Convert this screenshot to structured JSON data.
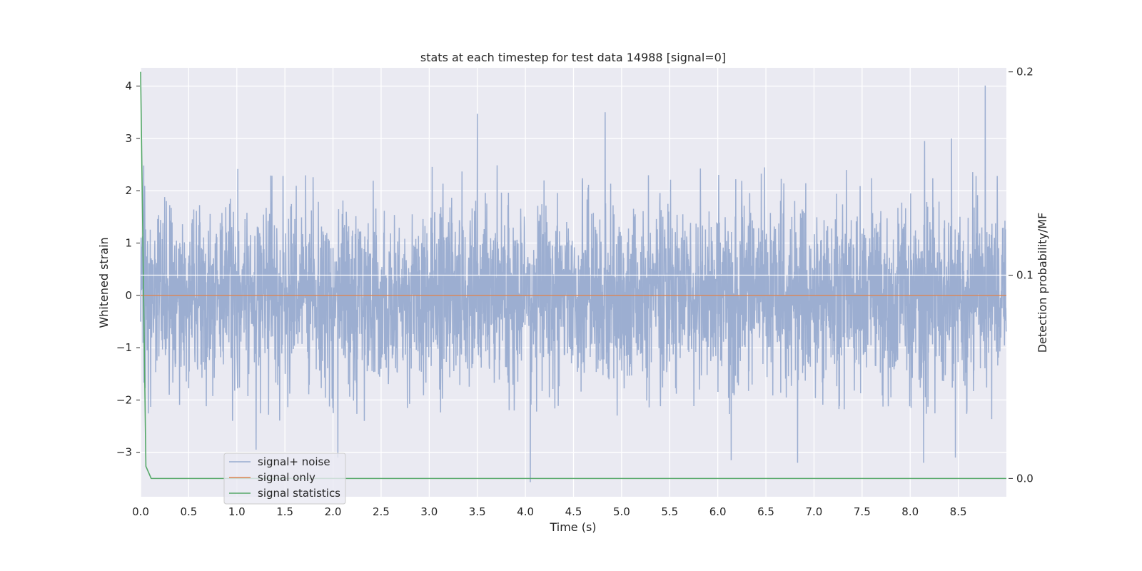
{
  "chart_data": {
    "type": "line",
    "title": "stats at each timestep for test data 14988 [signal=0]",
    "xlabel": "Time (s)",
    "ylabel": "Whitened strain",
    "y2label": "Detection probability/MF",
    "xlim": [
      0.0,
      9.0
    ],
    "ylim": [
      -3.85,
      4.35
    ],
    "y2lim": [
      -0.009,
      0.202
    ],
    "x_ticks": [
      "0.0",
      "0.5",
      "1.0",
      "1.5",
      "2.0",
      "2.5",
      "3.0",
      "3.5",
      "4.0",
      "4.5",
      "5.0",
      "5.5",
      "6.0",
      "6.5",
      "7.0",
      "7.5",
      "8.0",
      "8.5"
    ],
    "x_tick_values": [
      0.0,
      0.5,
      1.0,
      1.5,
      2.0,
      2.5,
      3.0,
      3.5,
      4.0,
      4.5,
      5.0,
      5.5,
      6.0,
      6.5,
      7.0,
      7.5,
      8.0,
      8.5
    ],
    "y_ticks": [
      "4",
      "3",
      "2",
      "1",
      "0",
      "−1",
      "−2",
      "−3"
    ],
    "y_tick_values": [
      4,
      3,
      2,
      1,
      0,
      -1,
      -2,
      -3
    ],
    "y2_ticks": [
      "0.2",
      "0.1",
      "0.0"
    ],
    "y2_tick_values": [
      0.2,
      0.1,
      0.0
    ],
    "grid": true,
    "legend_position": "lower-left",
    "series": [
      {
        "name": "signal+ noise",
        "color": "#98abcf",
        "axis": "left",
        "kind": "noise",
        "seed": 14988,
        "sample_rate_hz": 400,
        "duration_s": 9.0,
        "typical_range": [
          -1.8,
          1.9
        ],
        "peaks": [
          {
            "x": 3.5,
            "y": 3.47
          },
          {
            "x": 4.83,
            "y": 3.5
          },
          {
            "x": 8.78,
            "y": 4.01
          },
          {
            "x": 8.43,
            "y": 3.0
          },
          {
            "x": 8.15,
            "y": 2.95
          },
          {
            "x": 4.05,
            "y": -3.57
          },
          {
            "x": 2.05,
            "y": -3.1
          },
          {
            "x": 6.83,
            "y": -3.2
          },
          {
            "x": 8.14,
            "y": -3.2
          },
          {
            "x": 8.47,
            "y": -3.1
          },
          {
            "x": 6.14,
            "y": -3.15
          },
          {
            "x": 1.2,
            "y": -2.95
          }
        ]
      },
      {
        "name": "signal only",
        "color": "#dd8452",
        "axis": "left",
        "x": [
          0.0,
          9.0
        ],
        "y": [
          0.0,
          0.0
        ]
      },
      {
        "name": "signal statistics",
        "color": "#55a868",
        "axis": "right",
        "x": [
          0.0,
          0.055,
          0.11,
          9.0
        ],
        "y": [
          0.2,
          0.006,
          0.0,
          0.0
        ]
      }
    ]
  }
}
